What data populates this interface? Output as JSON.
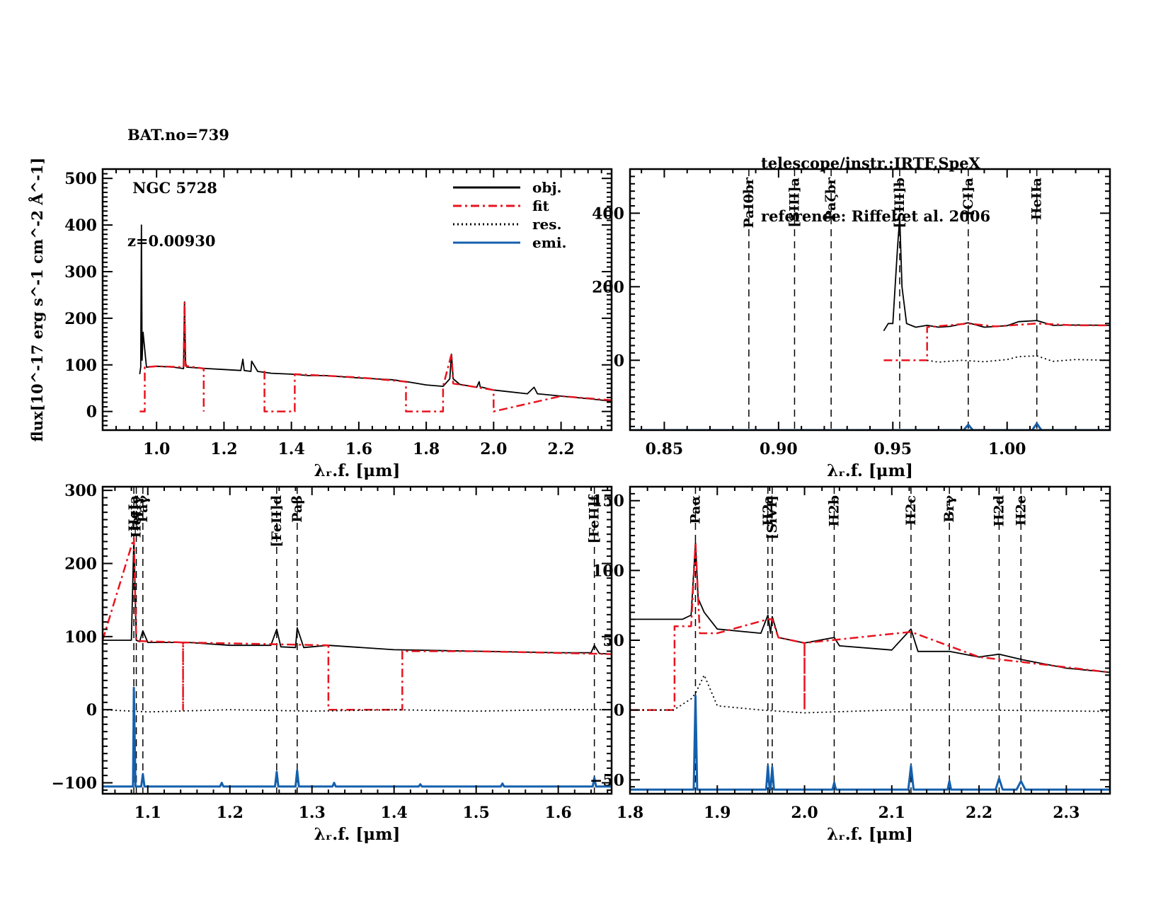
{
  "header": {
    "left": [
      "BAT.no=739",
      " NGC 5728",
      "z=0.00930"
    ],
    "right": [
      "telescope/instr.:IRTF,SpeX",
      "reference: Riffel et al. 2006"
    ]
  },
  "colors": {
    "obj": "#000000",
    "fit": "#e8141e",
    "res": "#000000",
    "emi": "#1560ad",
    "marker": "#000000"
  },
  "legend": [
    {
      "label": "obj.",
      "style": "solid",
      "color": "#000000"
    },
    {
      "label": "fit",
      "style": "dashdot",
      "color": "#e8141e"
    },
    {
      "label": "res.",
      "style": "dotted",
      "color": "#000000"
    },
    {
      "label": "emi.",
      "style": "solid",
      "color": "#1560ad"
    }
  ],
  "chart_data": [
    {
      "type": "line",
      "panel": "full-spectrum",
      "title": "",
      "xlabel": "λ r.f. [μm]",
      "ylabel": "flux[10^-17 erg s^-1 cm^-2 Å^-1]",
      "xlim": [
        0.84,
        2.35
      ],
      "ylim": [
        -40,
        520
      ],
      "xticks": [
        1.0,
        1.2,
        1.4,
        1.6,
        1.8,
        2.0,
        2.2
      ],
      "xtick_labels": [
        "1.0",
        "1.2",
        "1.4",
        "1.6",
        "1.8",
        "2.0",
        "2.2"
      ],
      "yticks": [
        0,
        100,
        200,
        300,
        400,
        500
      ],
      "ytick_labels": [
        "0",
        "100",
        "200",
        "300",
        "400",
        "500"
      ],
      "legend_position": "top-right",
      "series": [
        {
          "name": "obj.",
          "x": [
            0.95,
            0.953,
            0.955,
            0.957,
            0.96,
            0.97,
            1.0,
            1.05,
            1.08,
            1.083,
            1.086,
            1.09,
            1.15,
            1.2,
            1.25,
            1.256,
            1.26,
            1.28,
            1.282,
            1.3,
            1.34,
            1.4,
            1.45,
            1.5,
            1.6,
            1.65,
            1.7,
            1.75,
            1.8,
            1.85,
            1.87,
            1.875,
            1.88,
            1.9,
            1.95,
            1.957,
            1.96,
            2.0,
            2.1,
            2.12,
            2.13,
            2.2,
            2.3,
            2.35
          ],
          "y": [
            80,
            95,
            400,
            110,
            170,
            95,
            97,
            95,
            92,
            235,
            105,
            95,
            92,
            90,
            88,
            112,
            88,
            86,
            108,
            86,
            82,
            80,
            77,
            77,
            72,
            70,
            68,
            63,
            57,
            54,
            70,
            123,
            70,
            58,
            52,
            64,
            53,
            46,
            38,
            52,
            38,
            33,
            26,
            22
          ]
        },
        {
          "name": "fit",
          "segments": [
            {
              "x": [
                0.95,
                0.965,
                0.965,
                1.0,
                1.08,
                1.083,
                1.086,
                1.14,
                1.14
              ],
              "y": [
                0,
                0,
                95,
                97,
                95,
                235,
                98,
                92,
                0
              ]
            },
            {
              "x": [
                1.32,
                1.32,
                1.41,
                1.41,
                1.6,
                1.74,
                1.74,
                1.85,
                1.85,
                1.875,
                1.88,
                1.95,
                2.0,
                2.0,
                2.2,
                2.35
              ],
              "y": [
                87,
                0,
                0,
                80,
                73,
                64,
                0,
                0,
                54,
                123,
                60,
                52,
                46,
                0,
                33,
                24
              ]
            }
          ]
        },
        {
          "name": "res.",
          "x": [],
          "y": []
        },
        {
          "name": "emi.",
          "x": [],
          "y": []
        }
      ]
    },
    {
      "type": "line",
      "panel": "zoom-0.84-1.04",
      "xlabel": "λ r.f. [μm]",
      "xlim": [
        0.835,
        1.045
      ],
      "ylim": [
        -190,
        520
      ],
      "xticks": [
        0.85,
        0.9,
        0.95,
        1.0
      ],
      "xtick_labels": [
        "0.85",
        "0.90",
        "0.95",
        "1.00"
      ],
      "yticks": [
        0,
        200,
        400
      ],
      "ytick_labels": [
        "0",
        "200",
        "400"
      ],
      "lines": [
        {
          "label": "PaI0br",
          "x": 0.887
        },
        {
          "label": "[SIII]a",
          "x": 0.907
        },
        {
          "label": "Paζbr",
          "x": 0.923
        },
        {
          "label": "[SIII]b",
          "x": 0.953
        },
        {
          "label": "[CI]a",
          "x": 0.983
        },
        {
          "label": "HeIIa",
          "x": 1.013
        }
      ],
      "series": [
        {
          "name": "obj.",
          "x": [
            0.946,
            0.948,
            0.95,
            0.952,
            0.953,
            0.954,
            0.956,
            0.96,
            0.965,
            0.97,
            0.975,
            0.983,
            0.99,
            1.0,
            1.005,
            1.013,
            1.02,
            1.03,
            1.045
          ],
          "y": [
            80,
            100,
            100,
            300,
            390,
            200,
            100,
            90,
            95,
            90,
            92,
            102,
            90,
            94,
            105,
            108,
            95,
            96,
            95
          ]
        },
        {
          "name": "fit",
          "x": [
            0.946,
            0.965,
            0.965,
            0.983,
            0.995,
            1.013,
            1.03,
            1.045
          ],
          "y": [
            0,
            0,
            90,
            100,
            92,
            100,
            95,
            95
          ]
        },
        {
          "name": "res.",
          "x": [
            0.965,
            0.97,
            0.98,
            0.99,
            1.0,
            1.005,
            1.013,
            1.02,
            1.03,
            1.045
          ],
          "y": [
            0,
            -5,
            0,
            -4,
            2,
            10,
            12,
            -3,
            2,
            0
          ]
        },
        {
          "name": "emi.",
          "x": [
            0.835,
            0.981,
            0.983,
            0.985,
            1.011,
            1.013,
            1.015,
            1.045
          ],
          "y": [
            -190,
            -190,
            -175,
            -190,
            -190,
            -172,
            -190,
            -190
          ]
        }
      ]
    },
    {
      "type": "line",
      "panel": "zoom-1.04-1.66",
      "xlabel": "λ r.f. [μm]",
      "xlim": [
        1.045,
        1.665
      ],
      "ylim": [
        -115,
        305
      ],
      "xticks": [
        1.1,
        1.2,
        1.3,
        1.4,
        1.5,
        1.6
      ],
      "xtick_labels": [
        "1.1",
        "1.2",
        "1.3",
        "1.4",
        "1.5",
        "1.6"
      ],
      "yticks": [
        -100,
        0,
        100,
        200,
        300
      ],
      "ytick_labels": [
        "−100",
        "0",
        "100",
        "200",
        "300"
      ],
      "lines": [
        {
          "label": "HeIa",
          "x": 1.083
        },
        {
          "label": "HeIIγ",
          "x": 1.086
        },
        {
          "label": "Paγ",
          "x": 1.094
        },
        {
          "label": "[FeII]d",
          "x": 1.257
        },
        {
          "label": "Paβ",
          "x": 1.282
        },
        {
          "label": "[FeII]f",
          "x": 1.644
        }
      ],
      "series": [
        {
          "name": "obj.",
          "x": [
            1.045,
            1.08,
            1.083,
            1.086,
            1.09,
            1.094,
            1.1,
            1.15,
            1.2,
            1.25,
            1.257,
            1.262,
            1.28,
            1.282,
            1.29,
            1.32,
            1.4,
            1.5,
            1.6,
            1.64,
            1.644,
            1.65,
            1.665
          ],
          "y": [
            95,
            95,
            235,
            95,
            93,
            108,
            92,
            92,
            88,
            88,
            110,
            86,
            85,
            112,
            85,
            88,
            82,
            80,
            78,
            78,
            88,
            77,
            76
          ]
        },
        {
          "name": "fit",
          "x": [
            1.045,
            1.083,
            1.086,
            1.143,
            1.143,
            1.143,
            1.32,
            1.32,
            1.41,
            1.41,
            1.5,
            1.665
          ],
          "y": [
            95,
            235,
            94,
            92,
            0,
            92,
            88,
            0,
            0,
            80,
            80,
            76
          ]
        },
        {
          "name": "res.",
          "x": [
            1.045,
            1.1,
            1.2,
            1.3,
            1.4,
            1.5,
            1.6,
            1.665
          ],
          "y": [
            0,
            -3,
            0,
            -2,
            0,
            -2,
            0,
            0
          ]
        },
        {
          "name": "emi.",
          "x": [
            1.045,
            1.05,
            1.082,
            1.083,
            1.085,
            1.092,
            1.094,
            1.096,
            1.188,
            1.19,
            1.192,
            1.255,
            1.257,
            1.259,
            1.28,
            1.282,
            1.284,
            1.325,
            1.327,
            1.329,
            1.43,
            1.432,
            1.434,
            1.53,
            1.532,
            1.534,
            1.642,
            1.644,
            1.646,
            1.665
          ],
          "y": [
            -105,
            -105,
            -105,
            30,
            -105,
            -105,
            -88,
            -105,
            -105,
            -100,
            -105,
            -105,
            -85,
            -105,
            -105,
            -83,
            -105,
            -105,
            -100,
            -105,
            -105,
            -102,
            -105,
            -105,
            -101,
            -105,
            -105,
            -93,
            -105,
            -105
          ]
        }
      ]
    },
    {
      "type": "line",
      "panel": "zoom-1.8-2.35",
      "xlabel": "λ r.f. [μm]",
      "xlim": [
        1.8,
        2.35
      ],
      "ylim": [
        -60,
        160
      ],
      "xticks": [
        1.8,
        1.9,
        2.0,
        2.1,
        2.2,
        2.3
      ],
      "xtick_labels": [
        "1.8",
        "1.9",
        "2.0",
        "2.1",
        "2.2",
        "2.3"
      ],
      "yticks": [
        -50,
        0,
        50,
        100,
        150
      ],
      "ytick_labels": [
        "−50",
        "0",
        "50",
        "100",
        "150"
      ],
      "lines": [
        {
          "label": "Paα",
          "x": 1.875
        },
        {
          "label": "H2a",
          "x": 1.958
        },
        {
          "label": "[SiVI]",
          "x": 1.963
        },
        {
          "label": "H2b",
          "x": 2.034
        },
        {
          "label": "H2c",
          "x": 2.122
        },
        {
          "label": "Brγ",
          "x": 2.166
        },
        {
          "label": "H2d",
          "x": 2.223
        },
        {
          "label": "H2e",
          "x": 2.248
        }
      ],
      "series": [
        {
          "name": "obj.",
          "x": [
            1.8,
            1.86,
            1.87,
            1.875,
            1.878,
            1.885,
            1.9,
            1.95,
            1.958,
            1.961,
            1.963,
            1.97,
            2.0,
            2.034,
            2.04,
            2.1,
            2.122,
            2.13,
            2.166,
            2.2,
            2.223,
            2.25,
            2.3,
            2.35
          ],
          "y": [
            65,
            65,
            68,
            120,
            80,
            70,
            58,
            55,
            68,
            55,
            67,
            52,
            48,
            52,
            46,
            43,
            58,
            42,
            42,
            38,
            40,
            36,
            30,
            27
          ]
        },
        {
          "name": "fit",
          "x": [
            1.8,
            1.851,
            1.851,
            1.87,
            1.875,
            1.88,
            1.9,
            1.958,
            1.963,
            1.97,
            2.0,
            2.0,
            2.0,
            2.122,
            2.2,
            2.35
          ],
          "y": [
            0,
            0,
            60,
            60,
            120,
            55,
            55,
            65,
            65,
            52,
            48,
            0,
            48,
            56,
            38,
            27
          ]
        },
        {
          "name": "res.",
          "x": [
            1.8,
            1.85,
            1.87,
            1.875,
            1.885,
            1.9,
            1.95,
            2.0,
            2.1,
            2.2,
            2.35
          ],
          "y": [
            0,
            0,
            8,
            12,
            25,
            3,
            0,
            -2,
            0,
            0,
            -1
          ]
        },
        {
          "name": "emi.",
          "x": [
            1.8,
            1.873,
            1.875,
            1.877,
            1.956,
            1.958,
            1.96,
            1.961,
            1.963,
            1.965,
            2.032,
            2.034,
            2.036,
            2.119,
            2.122,
            2.125,
            2.164,
            2.166,
            2.168,
            2.219,
            2.223,
            2.227,
            2.243,
            2.248,
            2.253,
            2.35
          ],
          "y": [
            -57,
            -57,
            10,
            -57,
            -57,
            -40,
            -57,
            -57,
            -41,
            -57,
            -57,
            -52,
            -57,
            -57,
            -40,
            -57,
            -57,
            -51,
            -57,
            -57,
            -49,
            -57,
            -57,
            -51,
            -57,
            -57
          ]
        }
      ]
    }
  ]
}
